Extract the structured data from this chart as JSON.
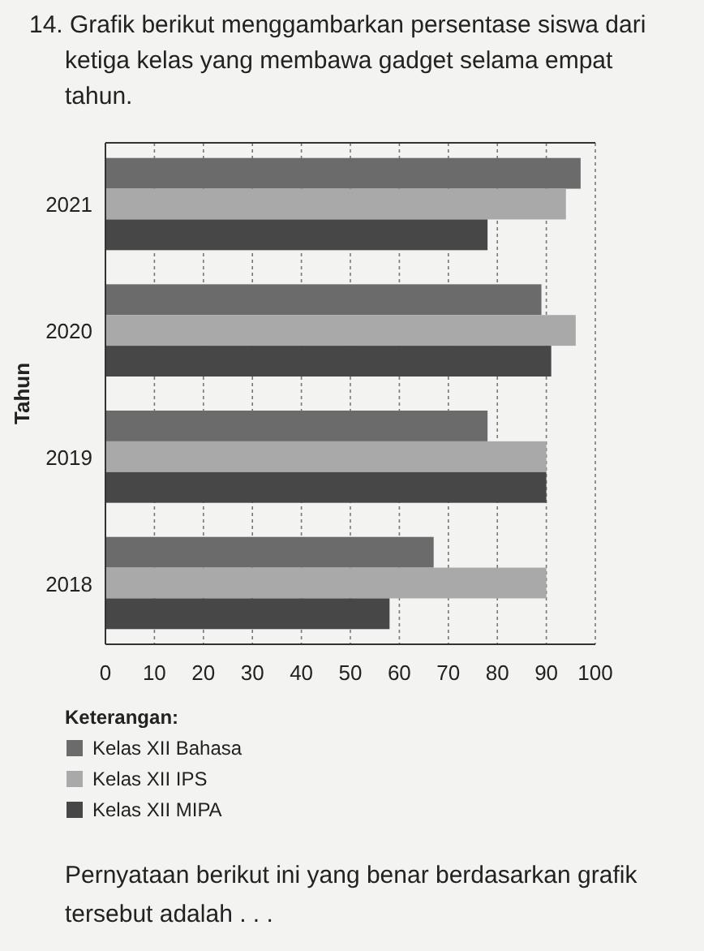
{
  "chart_data": {
    "type": "bar",
    "orientation": "horizontal",
    "title": "14. Grafik berikut menggambarkan persentase siswa dari ketiga kelas yang membawa gadget selama empat tahun.",
    "ylabel": "Tahun",
    "legend_title": "Keterangan:",
    "categories": [
      "2021",
      "2020",
      "2019",
      "2018"
    ],
    "series": [
      {
        "name": "Kelas XII Bahasa",
        "color": "#6b6b6b",
        "values": [
          97,
          89,
          78,
          67
        ]
      },
      {
        "name": "Kelas XII IPS",
        "color": "#a9a9a9",
        "values": [
          94,
          96,
          90,
          90
        ]
      },
      {
        "name": "Kelas XII MIPA",
        "color": "#474747",
        "values": [
          78,
          91,
          90,
          58
        ]
      }
    ],
    "xlim": [
      0,
      100
    ],
    "xticks": [
      0,
      10,
      20,
      30,
      40,
      50,
      60,
      70,
      80,
      90,
      100
    ],
    "grid": "x",
    "legend": "bottom",
    "annotations": [
      "Pernyataan berikut ini yang benar berdasarkan grafik tersebut adalah . . ."
    ]
  }
}
